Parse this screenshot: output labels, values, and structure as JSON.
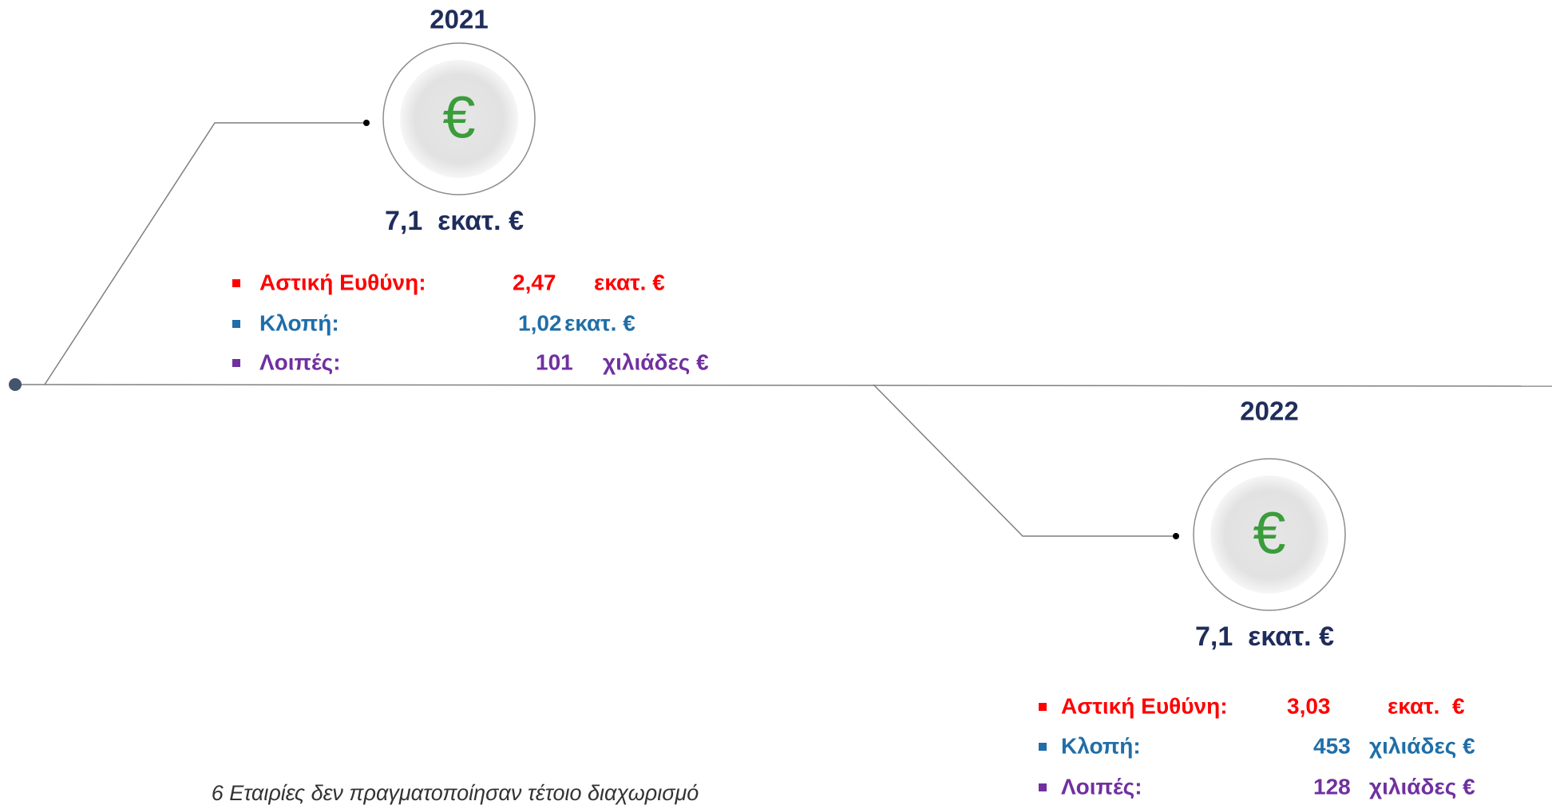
{
  "events": [
    {
      "year": "2021",
      "total": "7,1  εκατ. €",
      "icon": "€",
      "items": [
        {
          "label": "Αστική Ευθύνη:",
          "amount": "2,47",
          "unit": "εκατ. €"
        },
        {
          "label": "Κλοπή:",
          "amount": "1,02",
          "unit": "εκατ. €"
        },
        {
          "label": "Λοιπές:",
          "amount": "101",
          "unit": "χιλιάδες €"
        }
      ]
    },
    {
      "year": "2022",
      "total": "7,1  εκατ. €",
      "icon": "€",
      "items": [
        {
          "label": "Αστική Ευθύνη:",
          "amount": "3,03",
          "unit": "εκατ.  €"
        },
        {
          "label": "Κλοπή:",
          "amount": "453",
          "unit": "χιλιάδες €"
        },
        {
          "label": "Λοιπές:",
          "amount": "128",
          "unit": "χιλιάδες €"
        }
      ]
    }
  ],
  "footnote": "6 Εταιρίες δεν πραγματοποίησαν τέτοιο διαχωρισμό"
}
